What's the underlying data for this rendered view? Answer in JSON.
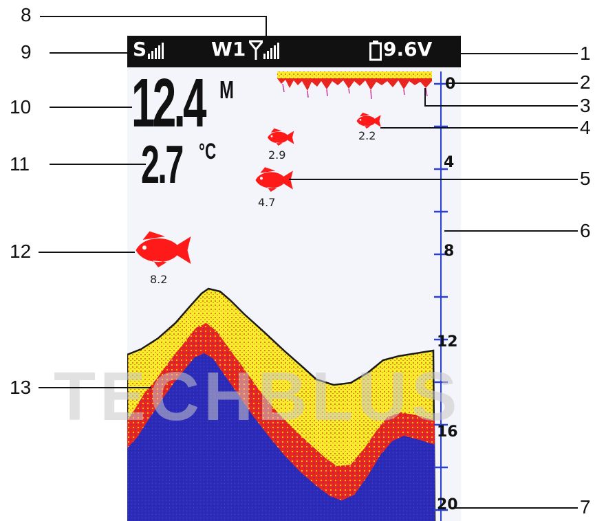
{
  "status_bar": {
    "sonar_label": "S",
    "wireless_label": "W1",
    "battery_voltage": "9.6V"
  },
  "readouts": {
    "depth_value": "12.4",
    "depth_unit": "M",
    "temperature_value": "2.7",
    "temperature_unit": "°C"
  },
  "fish": [
    {
      "label": "2.2",
      "size": "small"
    },
    {
      "label": "2.9",
      "size": "small"
    },
    {
      "label": "4.7",
      "size": "medium"
    },
    {
      "label": "8.2",
      "size": "large"
    }
  ],
  "depth_scale": {
    "tick_labels": [
      "0",
      "4",
      "8",
      "12",
      "16",
      "20"
    ]
  },
  "callouts": [
    "1",
    "2",
    "3",
    "4",
    "5",
    "6",
    "7",
    "8",
    "9",
    "10",
    "11",
    "12",
    "13"
  ],
  "watermark": "TECHBLUS",
  "colors": {
    "status_bar": "#111111",
    "screen_bg": "#f4f4fb",
    "fish": "#ff1a1a",
    "scale": "#2a3fd6",
    "bottom_yellow": "#f7ef2a",
    "bottom_red": "#e8251e",
    "bottom_blue": "#2b2bb8"
  },
  "icons": {
    "battery": "battery-icon",
    "antenna": "antenna-icon",
    "signal": "signal-bars-icon",
    "fish": "fish-icon"
  }
}
